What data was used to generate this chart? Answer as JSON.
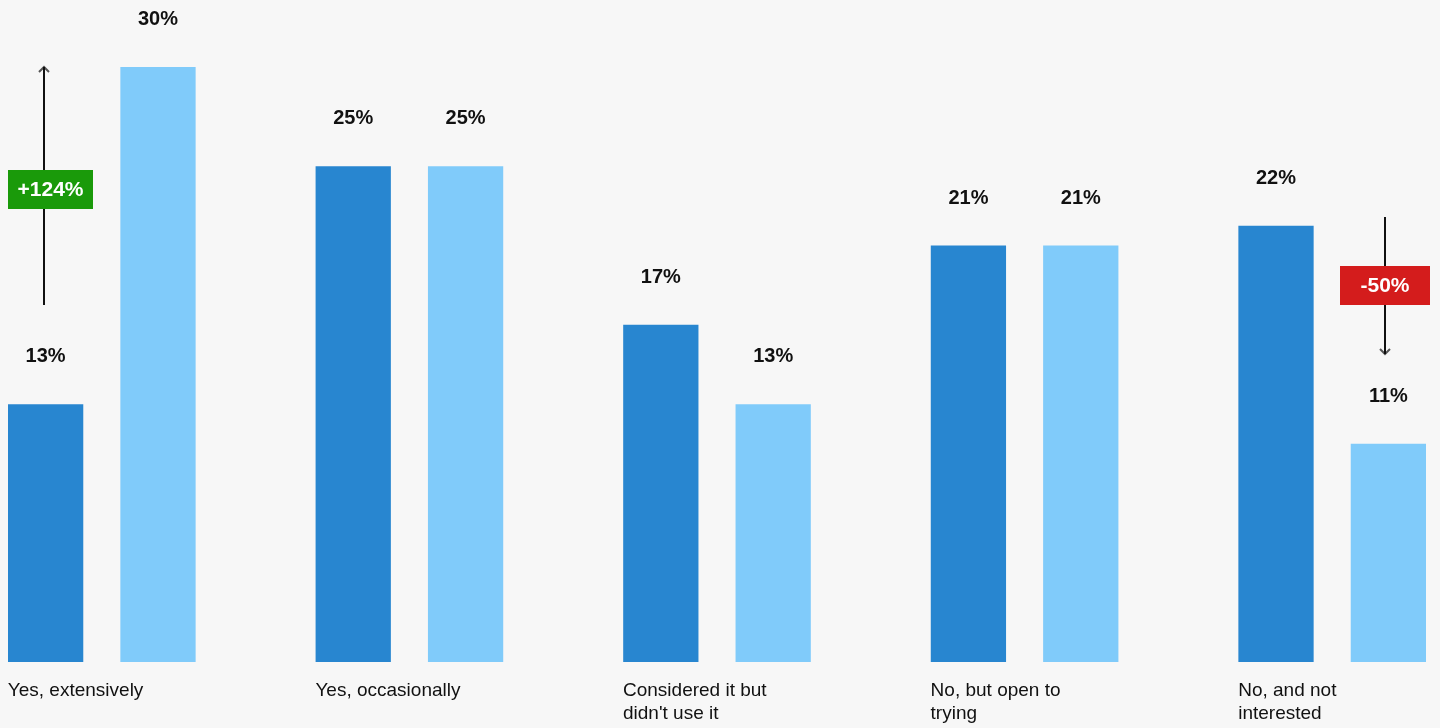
{
  "chart_data": {
    "type": "bar",
    "categories": [
      "Yes, extensively",
      "Yes, occasionally",
      "Considered it but didn't use it",
      "No, but open to trying",
      "No, and not interested"
    ],
    "series": [
      {
        "color": "#2886d0",
        "values": [
          13,
          25,
          17,
          21,
          22
        ],
        "value_labels": [
          "13%",
          "25%",
          "17%",
          "21%",
          "22%"
        ]
      },
      {
        "color": "#80cbfa",
        "values": [
          30,
          25,
          13,
          21,
          11
        ],
        "value_labels": [
          "30%",
          "25%",
          "13%",
          "21%",
          "11%"
        ]
      }
    ],
    "annotations": [
      "+124%",
      "-50%"
    ]
  }
}
